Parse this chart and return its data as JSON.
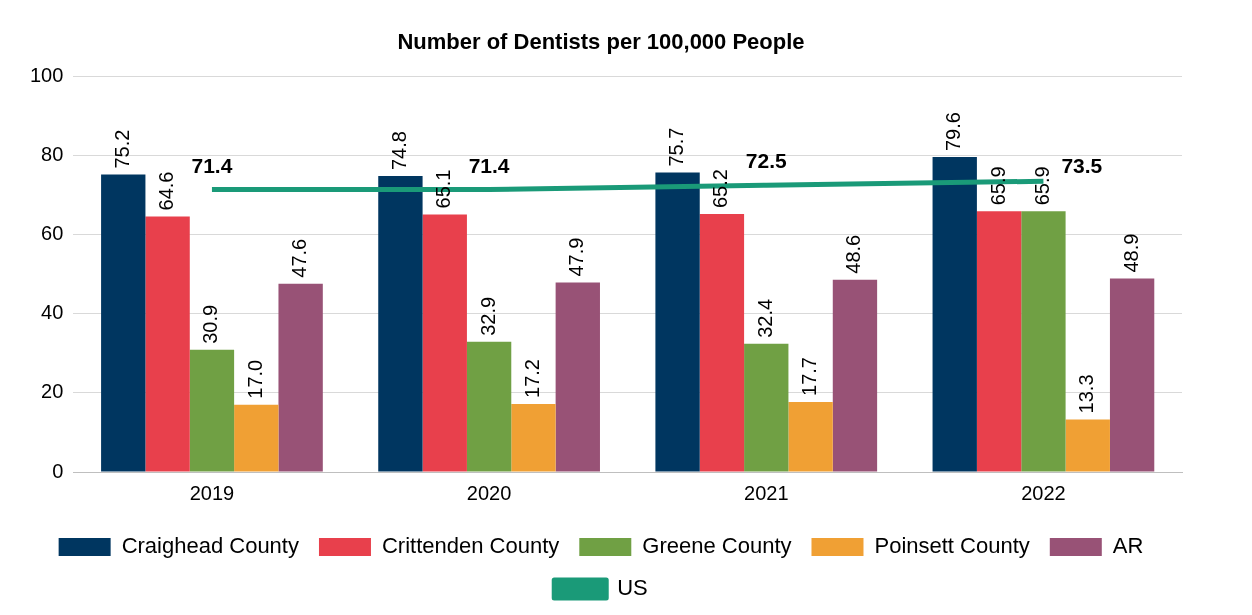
{
  "chart_data": {
    "type": "bar",
    "title": "Number of Dentists per 100,000 People",
    "categories": [
      "2019",
      "2020",
      "2021",
      "2022"
    ],
    "series": [
      {
        "name": "Craighead County",
        "color": "#003660",
        "values": [
          75.2,
          74.8,
          75.7,
          79.6
        ],
        "value_labels": [
          "75.2",
          "74.8",
          "75.7",
          "79.6"
        ]
      },
      {
        "name": "Crittenden County",
        "color": "#e8404c",
        "values": [
          64.6,
          65.1,
          65.2,
          65.9
        ],
        "value_labels": [
          "64.6",
          "65.1",
          "65.2",
          "65.9"
        ]
      },
      {
        "name": "Greene County",
        "color": "#70a044",
        "values": [
          30.9,
          32.9,
          32.4,
          65.9
        ],
        "value_labels": [
          "30.9",
          "32.9",
          "32.4",
          "65.9"
        ]
      },
      {
        "name": "Poinsett County",
        "color": "#f0a034",
        "values": [
          17.0,
          17.2,
          17.7,
          13.3
        ],
        "value_labels": [
          "17.0",
          "17.2",
          "17.7",
          "13.3"
        ]
      },
      {
        "name": "AR",
        "color": "#985276",
        "values": [
          47.6,
          47.9,
          48.6,
          48.9
        ],
        "value_labels": [
          "47.6",
          "47.9",
          "48.6",
          "48.9"
        ]
      },
      {
        "name": "US",
        "type": "line",
        "color": "#1a9a78",
        "values": [
          71.4,
          71.4,
          72.5,
          73.5
        ],
        "value_labels": [
          "71.4",
          "71.4",
          "72.5",
          "73.5"
        ]
      }
    ],
    "ylim": [
      0,
      100
    ],
    "yticks": [
      0,
      20,
      40,
      60,
      80,
      100
    ],
    "grid": "y",
    "legend": "bottom",
    "marker": "none"
  }
}
